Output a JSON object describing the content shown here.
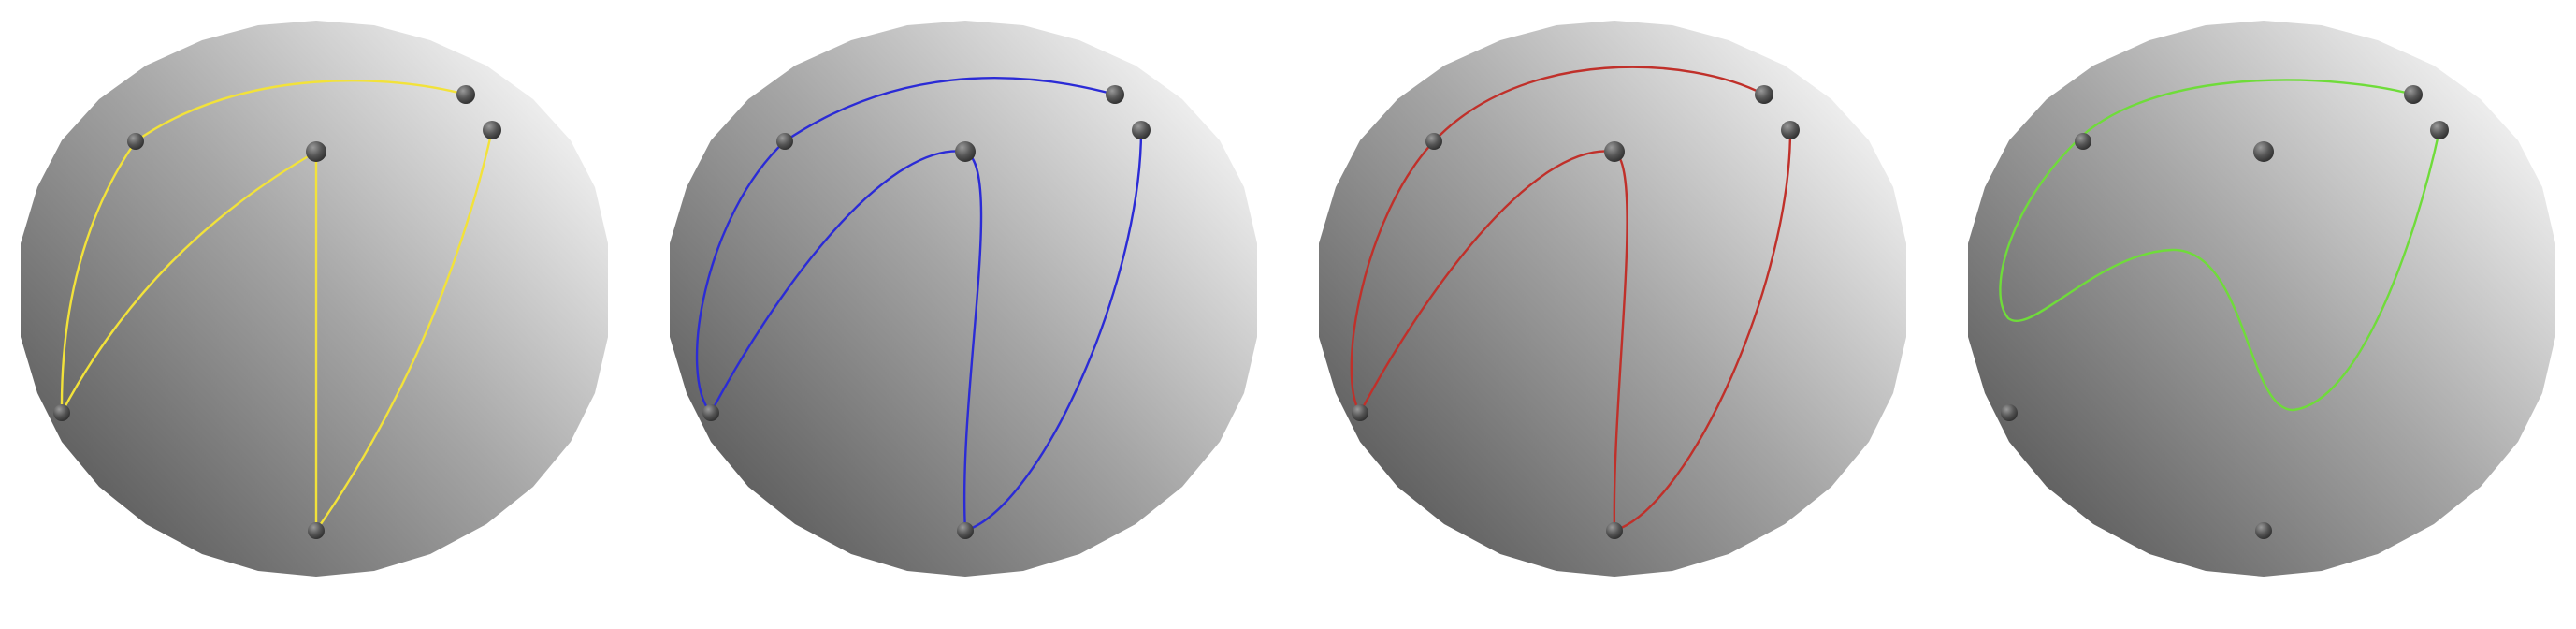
{
  "figure": {
    "panels": [
      {
        "id": "panel-1",
        "curve_color": "#f2e23a",
        "curve_kind": "polyline-arcs"
      },
      {
        "id": "panel-2",
        "curve_color": "#2b2bd6",
        "curve_kind": "smooth-spline"
      },
      {
        "id": "panel-3",
        "curve_color": "#c0302a",
        "curve_kind": "smooth-spline"
      },
      {
        "id": "panel-4",
        "curve_color": "#6fdc3a",
        "curve_kind": "approximating-spline"
      }
    ],
    "sphere_colors": {
      "light": "#f4f4f4",
      "mid": "#9a9a9a",
      "dark": "#5e5e5e"
    },
    "point_color": "#4a4a4a"
  }
}
